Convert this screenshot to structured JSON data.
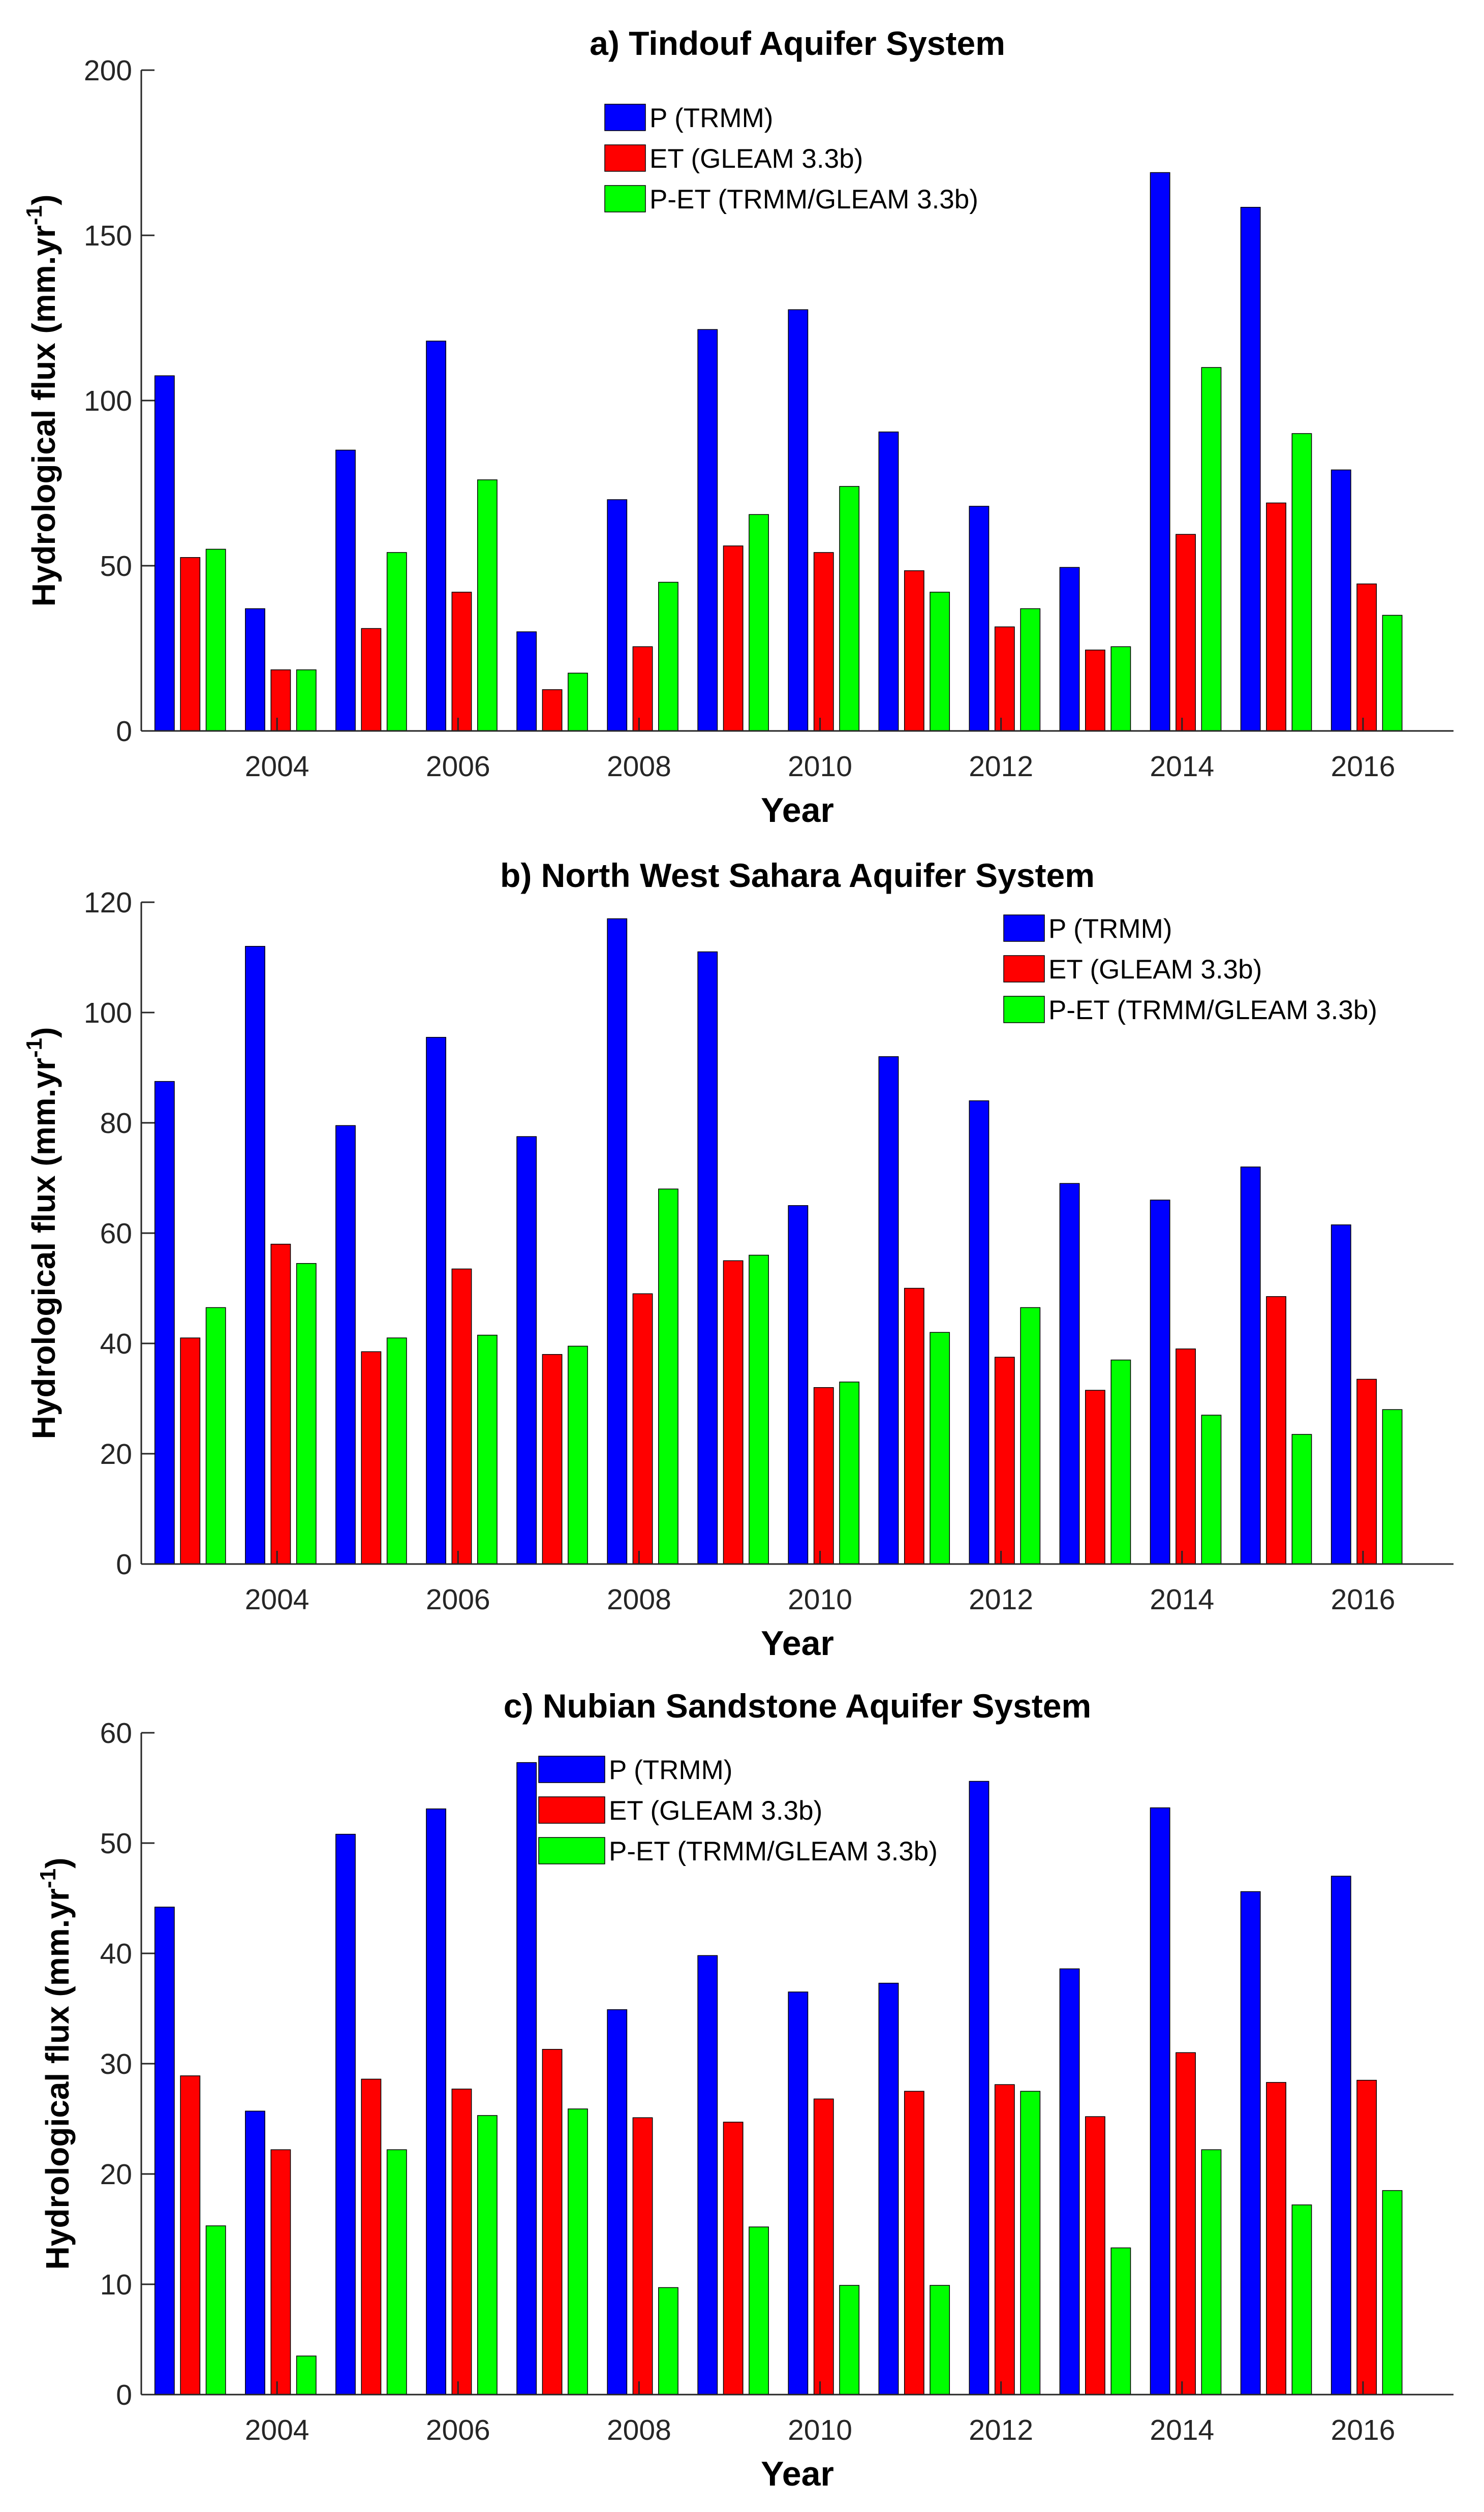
{
  "colors": {
    "P": "#0000ff",
    "ET": "#ff0000",
    "PET": "#00ff00"
  },
  "chart_data": [
    {
      "type": "bar",
      "title": "a) Tindouf Aquifer System",
      "xlabel": "Year",
      "ylabel": "Hydrological flux (mm.yr",
      "ylabel_sup": "-1",
      "ylabel_close": ")",
      "ylim": [
        0,
        200
      ],
      "yticks": [
        0,
        50,
        100,
        150,
        200
      ],
      "xtick_labels": [
        "2004",
        "2006",
        "2008",
        "2010",
        "2012",
        "2014",
        "2016"
      ],
      "legend_position": "top-center",
      "categories": [
        "2003",
        "2004",
        "2005",
        "2006",
        "2007",
        "2008",
        "2009",
        "2010",
        "2011",
        "2012",
        "2013",
        "2014",
        "2015",
        "2016"
      ],
      "series": [
        {
          "name": "P (TRMM)",
          "values": [
            107.5,
            37,
            85,
            118,
            30,
            70,
            121.5,
            127.5,
            90.5,
            68,
            49.5,
            169,
            158.5,
            79
          ]
        },
        {
          "name": "ET (GLEAM 3.3b)",
          "values": [
            52.5,
            18.5,
            31,
            42,
            12.5,
            25.5,
            56,
            54,
            48.5,
            31.5,
            24.5,
            59.5,
            69,
            44.5
          ]
        },
        {
          "name": "P-ET (TRMM/GLEAM 3.3b)",
          "values": [
            55,
            18.5,
            54,
            76,
            17.5,
            45,
            65.5,
            74,
            42,
            37,
            25.5,
            110,
            90,
            35
          ]
        }
      ]
    },
    {
      "type": "bar",
      "title": "b) North West Sahara Aquifer System",
      "xlabel": "Year",
      "ylabel": "Hydrological flux (mm.yr",
      "ylabel_sup": "-1",
      "ylabel_close": ")",
      "ylim": [
        0,
        120
      ],
      "yticks": [
        0,
        20,
        40,
        60,
        80,
        100,
        120
      ],
      "xtick_labels": [
        "2004",
        "2006",
        "2008",
        "2010",
        "2012",
        "2014",
        "2016"
      ],
      "legend_position": "top-right",
      "categories": [
        "2003",
        "2004",
        "2005",
        "2006",
        "2007",
        "2008",
        "2009",
        "2010",
        "2011",
        "2012",
        "2013",
        "2014",
        "2015",
        "2016"
      ],
      "series": [
        {
          "name": "P (TRMM)",
          "values": [
            87.5,
            112,
            79.5,
            95.5,
            77.5,
            117,
            111,
            65,
            92,
            84,
            69,
            66,
            72,
            61.5
          ]
        },
        {
          "name": "ET (GLEAM 3.3b)",
          "values": [
            41,
            58,
            38.5,
            53.5,
            38,
            49,
            55,
            32,
            50,
            37.5,
            31.5,
            39,
            48.5,
            33.5
          ]
        },
        {
          "name": "P-ET (TRMM/GLEAM 3.3b)",
          "values": [
            46.5,
            54.5,
            41,
            41.5,
            39.5,
            68,
            56,
            33,
            42,
            46.5,
            37,
            27,
            23.5,
            28
          ]
        }
      ]
    },
    {
      "type": "bar",
      "title": "c) Nubian Sandstone Aquifer System",
      "xlabel": "Year",
      "ylabel": "Hydrological flux (mm.yr",
      "ylabel_sup": "-1",
      "ylabel_close": ")",
      "ylim": [
        0,
        60
      ],
      "yticks": [
        0,
        10,
        20,
        30,
        40,
        50,
        60
      ],
      "xtick_labels": [
        "2004",
        "2006",
        "2008",
        "2010",
        "2012",
        "2014",
        "2016"
      ],
      "legend_position": "top-center",
      "categories": [
        "2003",
        "2004",
        "2005",
        "2006",
        "2007",
        "2008",
        "2009",
        "2010",
        "2011",
        "2012",
        "2013",
        "2014",
        "2015",
        "2016"
      ],
      "series": [
        {
          "name": "P (TRMM)",
          "values": [
            44.2,
            25.7,
            50.8,
            53.1,
            57.3,
            34.9,
            39.8,
            36.5,
            37.3,
            55.6,
            38.6,
            53.2,
            45.6,
            47
          ]
        },
        {
          "name": "ET (GLEAM 3.3b)",
          "values": [
            28.9,
            22.2,
            28.6,
            27.7,
            31.3,
            25.1,
            24.7,
            26.8,
            27.5,
            28.1,
            25.2,
            31,
            28.3,
            28.5
          ]
        },
        {
          "name": "P-ET (TRMM/GLEAM 3.3b)",
          "values": [
            15.3,
            3.5,
            22.2,
            25.3,
            25.9,
            9.7,
            15.2,
            9.9,
            9.9,
            27.5,
            13.3,
            22.2,
            17.2,
            18.5
          ]
        }
      ]
    }
  ]
}
